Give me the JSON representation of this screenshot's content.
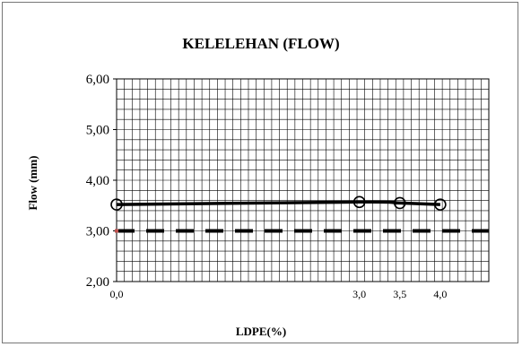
{
  "chart_data": {
    "type": "line",
    "title": "KELELEHAN (FLOW)",
    "xlabel": "LDPE(%)",
    "ylabel": "Flow (mm)",
    "ylim": [
      2.0,
      6.0
    ],
    "xlim": [
      0,
      4.6
    ],
    "y_ticks": [
      "2,00",
      "3,00",
      "4,00",
      "5,00",
      "6,00"
    ],
    "y_tick_values": [
      2.0,
      3.0,
      4.0,
      5.0,
      6.0
    ],
    "x_ticks": [
      "0,0",
      "3,0",
      "3,5",
      "4,0"
    ],
    "x_tick_values": [
      0.0,
      3.0,
      3.5,
      4.0
    ],
    "grid": true,
    "series": [
      {
        "style": "solid-with-circle-markers",
        "color": "#000000",
        "x": [
          0.0,
          3.0,
          3.5,
          4.0
        ],
        "y": [
          3.52,
          3.57,
          3.55,
          3.52
        ]
      },
      {
        "style": "dashed",
        "color": "#000000",
        "x": [
          0.0,
          4.6
        ],
        "y": [
          3.0,
          3.0
        ]
      }
    ]
  }
}
